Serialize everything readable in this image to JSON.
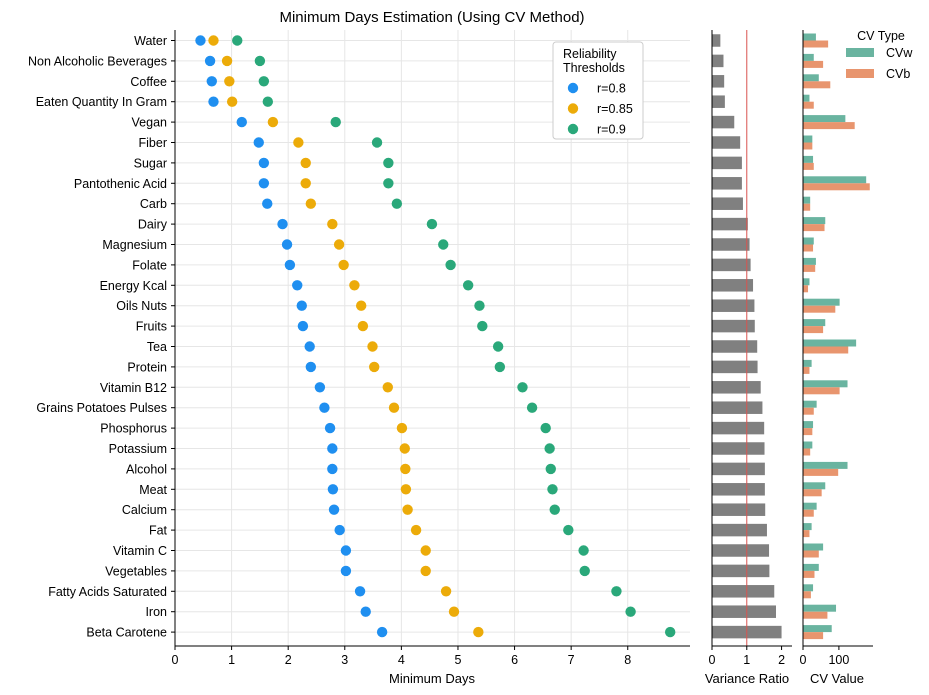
{
  "chart_data": [
    {
      "type": "scatter",
      "title": "Minimum Days Estimation (Using CV Method)",
      "xlabel": "Minimum Days",
      "ylabel": "",
      "xlim": [
        0,
        9.1
      ],
      "xticks": [
        0,
        1,
        2,
        3,
        4,
        5,
        6,
        7,
        8
      ],
      "grid": true,
      "legend": {
        "title": "Reliability\nThresholds",
        "placement": "top-right",
        "entries": [
          "r=0.8",
          "r=0.85",
          "r=0.9"
        ]
      },
      "categories": [
        "Water",
        "Non Alcoholic Beverages",
        "Coffee",
        "Eaten Quantity In Gram",
        "Vegan",
        "Fiber",
        "Sugar",
        "Pantothenic Acid",
        "Carb",
        "Dairy",
        "Magnesium",
        "Folate",
        "Energy Kcal",
        "Oils Nuts",
        "Fruits",
        "Tea",
        "Protein",
        "Vitamin B12",
        "Grains Potatoes Pulses",
        "Phosphorus",
        "Potassium",
        "Alcohol",
        "Meat",
        "Calcium",
        "Fat",
        "Vitamin C",
        "Vegetables",
        "Fatty Acids Saturated",
        "Iron",
        "Beta Carotene"
      ],
      "series": [
        {
          "name": "r=0.8",
          "color": "#1f8ff0",
          "values": [
            0.45,
            0.62,
            0.65,
            0.68,
            1.18,
            1.48,
            1.57,
            1.57,
            1.63,
            1.9,
            1.98,
            2.03,
            2.16,
            2.24,
            2.26,
            2.38,
            2.4,
            2.56,
            2.64,
            2.74,
            2.78,
            2.78,
            2.79,
            2.81,
            2.91,
            3.02,
            3.02,
            3.27,
            3.37,
            3.66
          ]
        },
        {
          "name": "r=0.85",
          "color": "#ecab09",
          "values": [
            0.68,
            0.92,
            0.96,
            1.01,
            1.73,
            2.18,
            2.31,
            2.31,
            2.4,
            2.78,
            2.9,
            2.98,
            3.17,
            3.29,
            3.32,
            3.49,
            3.52,
            3.76,
            3.87,
            4.01,
            4.06,
            4.07,
            4.08,
            4.11,
            4.26,
            4.43,
            4.43,
            4.79,
            4.93,
            5.36
          ]
        },
        {
          "name": "r=0.9",
          "color": "#2aa87a",
          "values": [
            1.1,
            1.5,
            1.57,
            1.64,
            2.84,
            3.57,
            3.77,
            3.77,
            3.92,
            4.54,
            4.74,
            4.87,
            5.18,
            5.38,
            5.43,
            5.71,
            5.74,
            6.14,
            6.31,
            6.55,
            6.62,
            6.64,
            6.67,
            6.71,
            6.95,
            7.22,
            7.24,
            7.8,
            8.05,
            8.75
          ]
        }
      ]
    },
    {
      "type": "bar",
      "orientation": "horizontal",
      "title": "",
      "xlabel": "Variance Ratio",
      "xlim": [
        0,
        2.3
      ],
      "xticks": [
        0,
        1,
        2
      ],
      "reference_line": {
        "value": 1,
        "color": "#d9534f"
      },
      "bar_color": "#808080",
      "values": [
        0.24,
        0.33,
        0.35,
        0.37,
        0.64,
        0.81,
        0.86,
        0.86,
        0.89,
        1.03,
        1.08,
        1.11,
        1.18,
        1.22,
        1.23,
        1.3,
        1.31,
        1.4,
        1.45,
        1.5,
        1.51,
        1.52,
        1.52,
        1.53,
        1.58,
        1.64,
        1.65,
        1.79,
        1.84,
        2.0
      ]
    },
    {
      "type": "bar",
      "orientation": "horizontal",
      "title": "",
      "xlabel": "CV Value",
      "xlim": [
        0,
        195
      ],
      "xticks": [
        0,
        100
      ],
      "legend": {
        "title": "CV Type",
        "placement": "top-right",
        "entries": [
          "CVw",
          "CVb"
        ]
      },
      "series": [
        {
          "name": "CVw",
          "color": "#6ab4a0",
          "values": [
            36,
            30,
            44,
            18,
            118,
            26,
            28,
            176,
            20,
            62,
            30,
            36,
            18,
            102,
            62,
            148,
            24,
            124,
            38,
            28,
            26,
            124,
            62,
            38,
            24,
            56,
            44,
            28,
            92,
            80
          ]
        },
        {
          "name": "CVb",
          "color": "#e8956e",
          "values": [
            70,
            56,
            76,
            30,
            144,
            26,
            30,
            186,
            20,
            60,
            28,
            34,
            14,
            90,
            56,
            126,
            18,
            102,
            30,
            26,
            20,
            98,
            52,
            30,
            18,
            44,
            32,
            22,
            68,
            56
          ]
        }
      ]
    }
  ]
}
